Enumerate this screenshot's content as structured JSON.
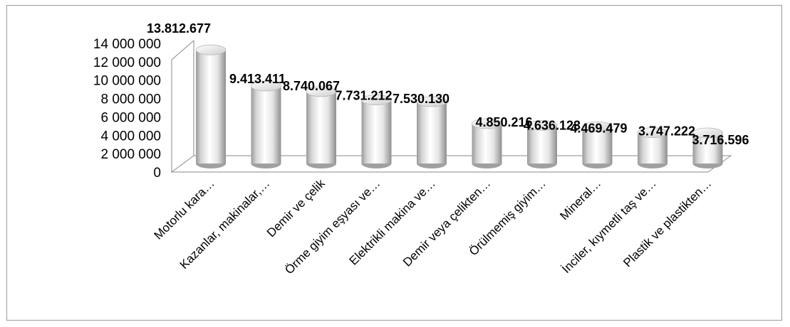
{
  "chart_data": {
    "type": "bar",
    "style": "3d-cylinder",
    "title": "",
    "xlabel": "",
    "ylabel": "",
    "ylim": [
      0,
      14000000
    ],
    "grid": false,
    "legend": "none",
    "bar_color": "#f0f0f0",
    "y_ticks": [
      "0",
      "2 000 000",
      "4 000 000",
      "6 000 000",
      "8 000 000",
      "10 000 000",
      "12 000 000",
      "14 000 000"
    ],
    "categories": [
      "Motorlu kara…",
      "Kazanlar, makinalar,…",
      "Demir ve çelik",
      "Örme giyim eşyası ve…",
      "Elektrikli makina ve…",
      "Demir veya çelikten…",
      "Örülmemiş giyim…",
      "Mineral…",
      "İnciler, kıymetli taş ve…",
      "Plastik ve plastikten…"
    ],
    "values": [
      13812677,
      9413411,
      8740067,
      7731212,
      7530130,
      4850216,
      4636123,
      4469479,
      3747222,
      3716596
    ],
    "data_labels": [
      "13.812.677",
      "9.413.411",
      "8.740.067",
      "7.731.212",
      "7.530.130",
      "4.850.216",
      "4.636.123",
      "4.469.479",
      "3.747.222",
      "3.716.596"
    ]
  }
}
